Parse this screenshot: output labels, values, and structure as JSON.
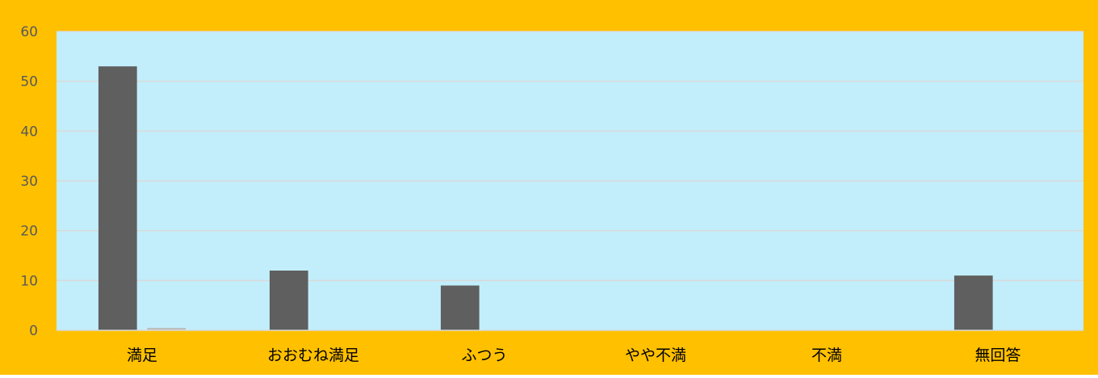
{
  "colors": {
    "frame": "#FFC000",
    "plot_area": "#C2EEFB",
    "gridline": "#D9D9D9",
    "axis_line": "#D9D9D9",
    "tick_label": "#595959",
    "category_label": "#000000",
    "series_1": "#5F5F5F",
    "series_2": "#BDBDBD"
  },
  "chart_data": {
    "type": "bar",
    "title": "",
    "xlabel": "",
    "ylabel": "",
    "categories": [
      "満足",
      "おおむね満足",
      "ふつう",
      "やや不満",
      "不満",
      "無回答"
    ],
    "series": [
      {
        "values": [
          53,
          12,
          9,
          0,
          0,
          11
        ]
      },
      {
        "values": [
          0.5,
          0,
          0,
          0,
          0,
          0
        ]
      }
    ],
    "ylim": [
      0,
      60
    ],
    "yticks": [
      0,
      10,
      20,
      30,
      40,
      50,
      60
    ],
    "ytick_labels": [
      "0",
      "10",
      "20",
      "30",
      "40",
      "50",
      "60"
    ],
    "grid": true,
    "legend": "none"
  }
}
